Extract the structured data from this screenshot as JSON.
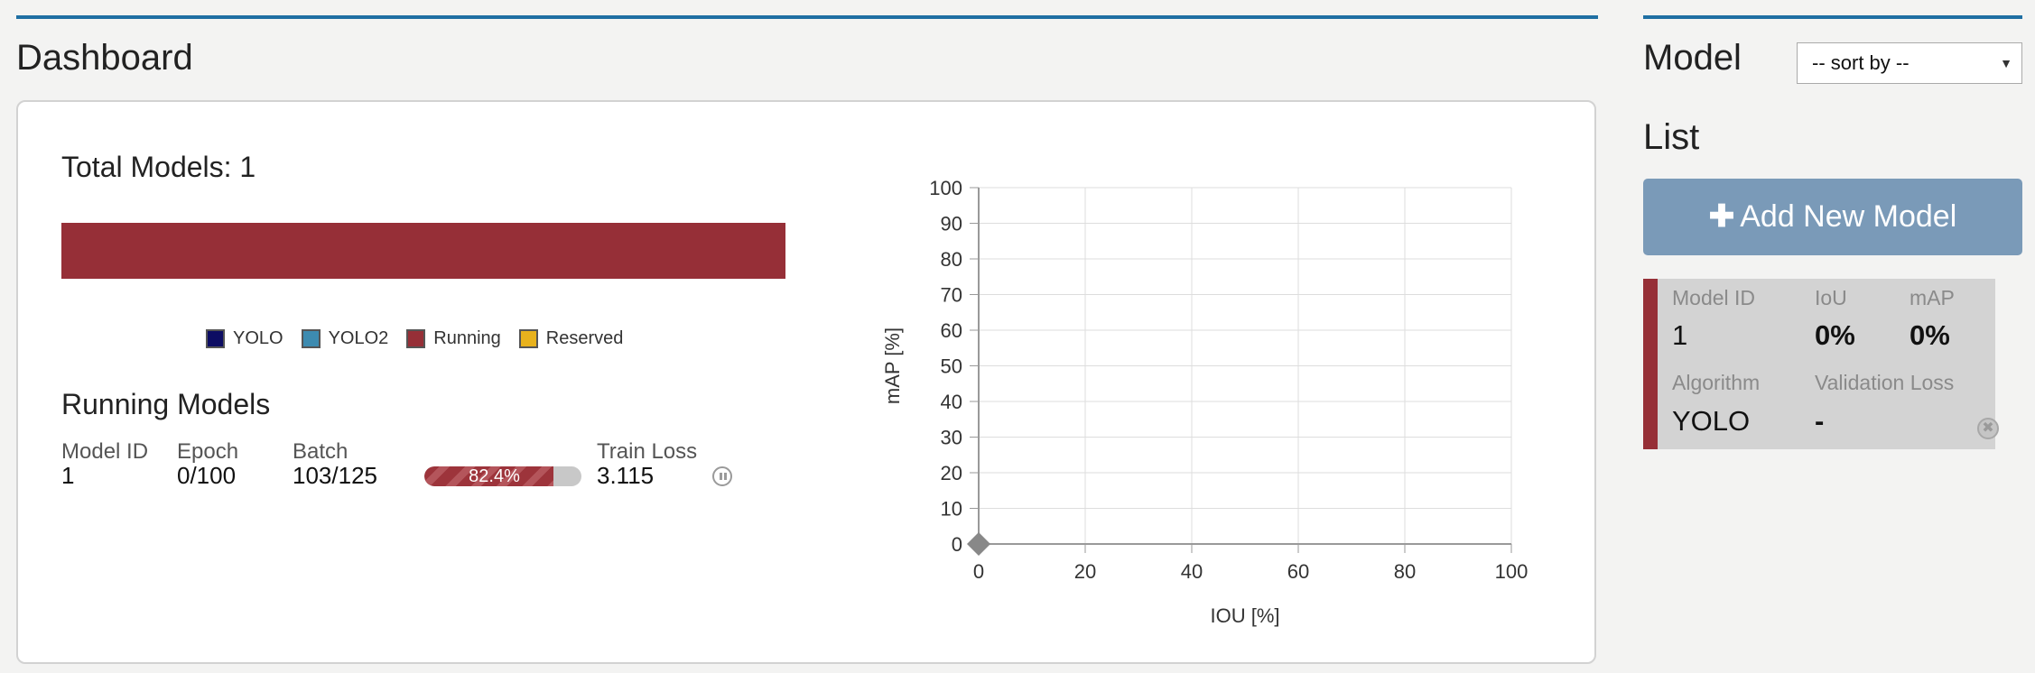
{
  "dashboard": {
    "title": "Dashboard",
    "total_models": "Total Models: 1",
    "legend": [
      {
        "label": "YOLO",
        "color": "#0d0d63"
      },
      {
        "label": "YOLO2",
        "color": "#3d8bb0"
      },
      {
        "label": "Running",
        "color": "#962f37"
      },
      {
        "label": "Reserved",
        "color": "#e8b21d"
      }
    ],
    "running": {
      "title": "Running Models",
      "headers": {
        "model_id": "Model ID",
        "epoch": "Epoch",
        "batch": "Batch",
        "train_loss": "Train Loss"
      },
      "row": {
        "model_id": "1",
        "epoch": "0/100",
        "batch": "103/125",
        "progress_text": "82.4%",
        "progress": 0.824,
        "train_loss": "3.115"
      }
    }
  },
  "chart_data": {
    "type": "scatter",
    "xlabel": "IOU [%]",
    "ylabel": "mAP [%]",
    "xlim": [
      0,
      100
    ],
    "ylim": [
      0,
      100
    ],
    "x_ticks": [
      0,
      20,
      40,
      60,
      80,
      100
    ],
    "y_ticks": [
      0,
      10,
      20,
      30,
      40,
      50,
      60,
      70,
      80,
      90,
      100
    ],
    "grid": true,
    "points": [
      {
        "x": 0,
        "y": 0
      }
    ],
    "point_color": "#888888"
  },
  "sidebar": {
    "title_1": "Model",
    "title_2": "List",
    "sort_placeholder": "-- sort by --",
    "add_button": "Add New Model",
    "card": {
      "model_id_label": "Model ID",
      "model_id": "1",
      "iou_label": "IoU",
      "iou": "0%",
      "map_label": "mAP",
      "map": "0%",
      "algorithm_label": "Algorithm",
      "algorithm": "YOLO",
      "val_loss_label": "Validation Loss",
      "val_loss": "-"
    }
  }
}
